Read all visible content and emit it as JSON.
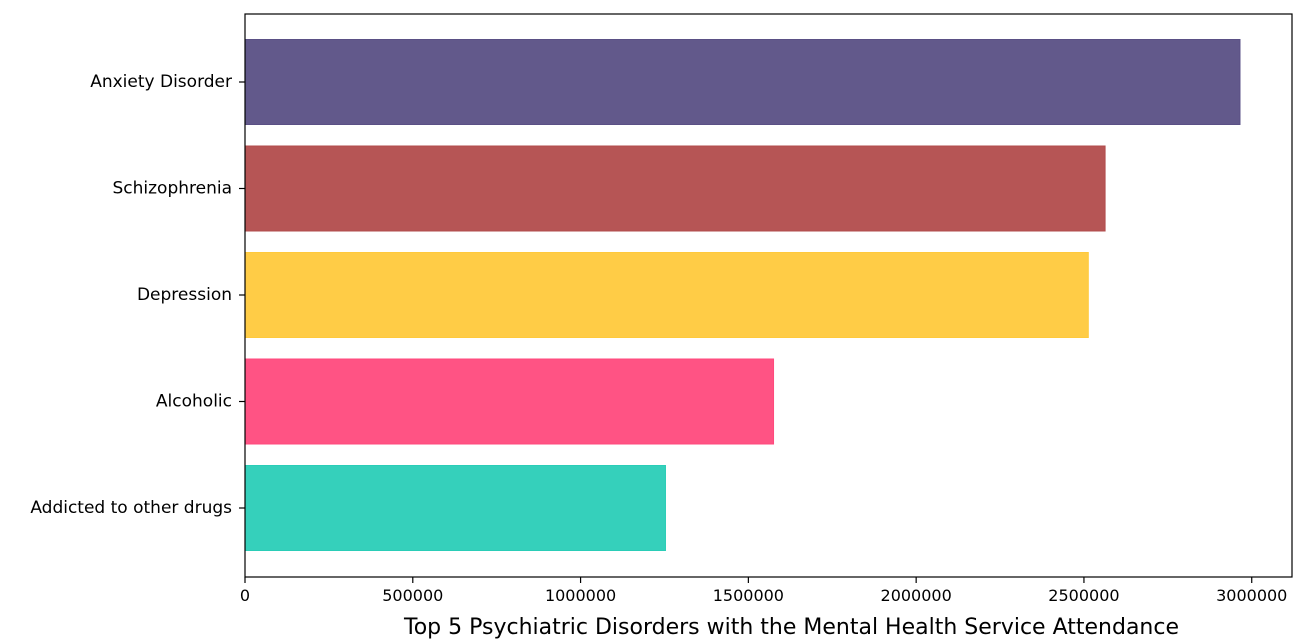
{
  "chart_data": {
    "type": "bar",
    "orientation": "horizontal",
    "categories": [
      "Anxiety Disorder",
      "Schizophrenia",
      "Depression",
      "Alcoholic",
      "Addicted to other drugs"
    ],
    "values": [
      2965000,
      2563000,
      2513000,
      1575000,
      1253000
    ],
    "colors": [
      "#5a5085",
      "#b24c4c",
      "#ffc93c",
      "#ff4a7d",
      "#2acdb7"
    ],
    "title": "",
    "xlabel": "Top 5 Psychiatric Disorders with the Mental Health Service Attendance",
    "ylabel": "",
    "xlim": [
      0,
      3120000
    ],
    "xticks": [
      0,
      500000,
      1000000,
      1500000,
      2000000,
      2500000,
      3000000
    ],
    "xtick_labels": [
      "0",
      "500000",
      "1000000",
      "1500000",
      "2000000",
      "2500000",
      "3000000"
    ],
    "grid": false,
    "legend": "none"
  }
}
